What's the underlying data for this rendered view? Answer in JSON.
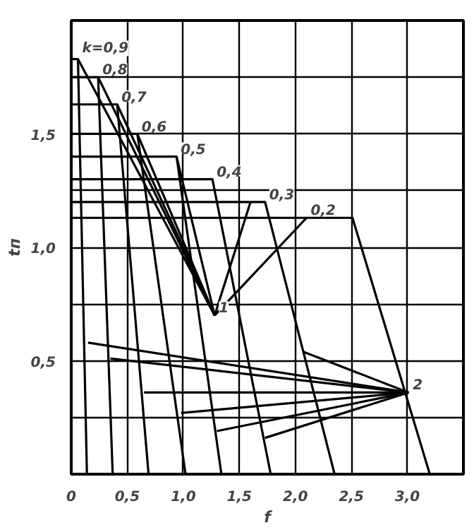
{
  "chart_data": {
    "type": "line",
    "xlabel": "f",
    "ylabel": "tп",
    "xlim": [
      0,
      3.5
    ],
    "ylim": [
      0,
      2.0
    ],
    "xticks": [
      0,
      {
        "value": 0.5,
        "label": "0,5"
      },
      {
        "value": 1.0,
        "label": "1,0"
      },
      {
        "value": 1.5,
        "label": "1,5"
      },
      {
        "value": 2.0,
        "label": "2,0"
      },
      {
        "value": 2.5,
        "label": "2,5"
      },
      {
        "value": 3.0,
        "label": "3,0"
      },
      {
        "value": 3.5,
        "label": null
      }
    ],
    "yticks": [
      {
        "value": 0.25,
        "label": null
      },
      {
        "value": 0.5,
        "label": "0,5"
      },
      {
        "value": 0.75,
        "label": null
      },
      {
        "value": 1.0,
        "label": "1,0"
      },
      {
        "value": 1.25,
        "label": null
      },
      {
        "value": 1.5,
        "label": "1,5"
      },
      {
        "value": 1.75,
        "label": null
      }
    ],
    "grid": true,
    "line_style": "solid",
    "marker": "none",
    "series": [
      {
        "color": "#000000",
        "x": [
          0,
          0.06,
          0.14
        ],
        "values": [
          1.83,
          1.83,
          0
        ]
      },
      {
        "color": "#000000",
        "x": [
          0,
          0.24,
          0.37
        ],
        "values": [
          1.75,
          1.75,
          0
        ]
      },
      {
        "color": "#000000",
        "x": [
          0,
          0.41,
          0.69
        ],
        "values": [
          1.63,
          1.63,
          0
        ]
      },
      {
        "color": "#000000",
        "x": [
          0,
          0.59,
          1.02
        ],
        "values": [
          1.5,
          1.5,
          0
        ]
      },
      {
        "color": "#000000",
        "x": [
          0,
          0.94,
          1.34
        ],
        "values": [
          1.4,
          1.4,
          0
        ]
      },
      {
        "color": "#000000",
        "x": [
          0,
          1.26,
          1.78
        ],
        "values": [
          1.3,
          1.3,
          0
        ]
      },
      {
        "color": "#000000",
        "x": [
          0,
          1.73,
          2.35
        ],
        "values": [
          1.2,
          1.2,
          0
        ]
      },
      {
        "color": "#000000",
        "x": [
          0,
          2.51,
          3.2
        ],
        "values": [
          1.13,
          1.13,
          0
        ]
      },
      {
        "color": "#000000",
        "x": [
          0.06,
          1.28
        ],
        "values": [
          1.83,
          0.7
        ]
      },
      {
        "color": "#000000",
        "x": [
          0.24,
          1.28
        ],
        "values": [
          1.75,
          0.7
        ]
      },
      {
        "color": "#000000",
        "x": [
          0.41,
          1.28
        ],
        "values": [
          1.63,
          0.7
        ]
      },
      {
        "color": "#000000",
        "x": [
          0.59,
          1.28
        ],
        "values": [
          1.5,
          0.7
        ]
      },
      {
        "color": "#000000",
        "x": [
          0.94,
          1.28
        ],
        "values": [
          1.4,
          0.7
        ]
      },
      {
        "color": "#000000",
        "x": [
          1.28,
          1.6
        ],
        "values": [
          0.7,
          1.2
        ]
      },
      {
        "color": "#000000",
        "x": [
          1.28,
          2.1
        ],
        "values": [
          0.7,
          1.13
        ]
      },
      {
        "color": "#000000",
        "x": [
          0.15,
          3.01
        ],
        "values": [
          0.58,
          0.36
        ]
      },
      {
        "color": "#000000",
        "x": [
          0.35,
          3.01
        ],
        "values": [
          0.51,
          0.36
        ]
      },
      {
        "color": "#000000",
        "x": [
          0.65,
          3.01
        ],
        "values": [
          0.36,
          0.36
        ]
      },
      {
        "color": "#000000",
        "x": [
          0.98,
          3.01
        ],
        "values": [
          0.27,
          0.36
        ]
      },
      {
        "color": "#000000",
        "x": [
          1.3,
          3.01
        ],
        "values": [
          0.19,
          0.36
        ]
      },
      {
        "color": "#000000",
        "x": [
          1.73,
          3.01
        ],
        "values": [
          0.16,
          0.36
        ]
      },
      {
        "color": "#000000",
        "x": [
          2.07,
          3.01
        ],
        "values": [
          0.54,
          0.36
        ]
      }
    ],
    "annotations": [
      {
        "text": "k=0,9",
        "x": 0.06,
        "y": 1.83
      },
      {
        "text": "0,8",
        "x": 0.24,
        "y": 1.75
      },
      {
        "text": "0,7",
        "x": 0.41,
        "y": 1.63
      },
      {
        "text": "0,6",
        "x": 0.59,
        "y": 1.5
      },
      {
        "text": "0,5",
        "x": 0.94,
        "y": 1.4
      },
      {
        "text": "0,4",
        "x": 1.26,
        "y": 1.3
      },
      {
        "text": "0,3",
        "x": 1.73,
        "y": 1.2
      },
      {
        "text": "0,2",
        "x": 2.1,
        "y": 1.13
      },
      {
        "text": "1",
        "x": 1.28,
        "y": 0.7
      },
      {
        "text": "2",
        "x": 3.01,
        "y": 0.36
      }
    ]
  }
}
